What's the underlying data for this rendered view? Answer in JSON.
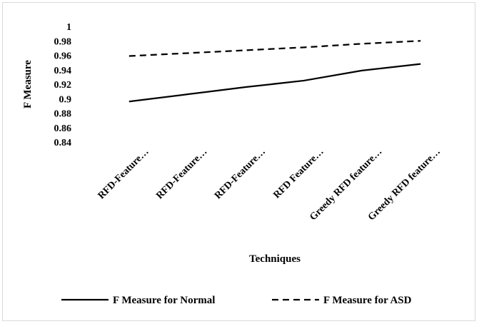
{
  "chart_data": {
    "type": "line",
    "categories": [
      "RFD-Feature…",
      "RFD-Feature…",
      "RFD-Feature…",
      "RFD Feature…",
      "Greedy RFD feature…",
      "Greedy RFD feature…"
    ],
    "series": [
      {
        "name": "F Measure for Normal",
        "values": [
          0.896,
          0.906,
          0.916,
          0.925,
          0.939,
          0.948
        ],
        "color": "#000000",
        "dash": "solid"
      },
      {
        "name": "F Measure for ASD",
        "values": [
          0.959,
          0.963,
          0.967,
          0.971,
          0.976,
          0.98
        ],
        "color": "#000000",
        "dash": "dashed"
      }
    ],
    "xlabel": "Techniques",
    "ylabel": "F Measure",
    "ylim": [
      0.84,
      1.0
    ],
    "yticks": [
      "0.84",
      "0.86",
      "0.88",
      "0.9",
      "0.92",
      "0.94",
      "0.96",
      "0.98",
      "1"
    ],
    "grid": false,
    "legend_position": "bottom"
  }
}
